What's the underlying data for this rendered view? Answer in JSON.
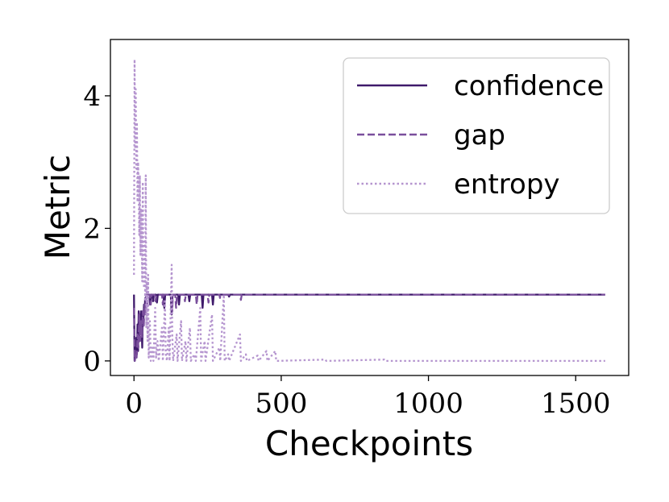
{
  "chart_data": {
    "type": "line",
    "title": "",
    "xlabel": "Checkpoints",
    "ylabel": "Metric",
    "xlim": [
      -80,
      1680
    ],
    "ylim": [
      -0.22,
      4.85
    ],
    "xticks": [
      0,
      500,
      1000,
      1500
    ],
    "yticks": [
      0,
      2,
      4
    ],
    "grid": false,
    "legend_position": "top-right",
    "series": [
      {
        "name": "confidence",
        "style": "solid",
        "color": "#3f1a6b",
        "points": [
          [
            0,
            1.0
          ],
          [
            2,
            0.0
          ],
          [
            4,
            0.2
          ],
          [
            6,
            0.05
          ],
          [
            8,
            0.35
          ],
          [
            10,
            0.1
          ],
          [
            12,
            0.55
          ],
          [
            14,
            0.15
          ],
          [
            16,
            0.75
          ],
          [
            18,
            0.3
          ],
          [
            20,
            0.7
          ],
          [
            22,
            0.4
          ],
          [
            24,
            0.75
          ],
          [
            26,
            0.5
          ],
          [
            28,
            0.2
          ],
          [
            30,
            0.75
          ],
          [
            32,
            0.6
          ],
          [
            34,
            0.85
          ],
          [
            36,
            0.7
          ],
          [
            38,
            0.95
          ],
          [
            40,
            0.9
          ],
          [
            42,
            1.0
          ],
          [
            45,
            0.95
          ],
          [
            48,
            1.0
          ],
          [
            52,
            1.0
          ],
          [
            55,
            0.85
          ],
          [
            58,
            1.0
          ],
          [
            62,
            1.0
          ],
          [
            65,
            0.9
          ],
          [
            68,
            1.0
          ],
          [
            75,
            1.0
          ],
          [
            78,
            0.88
          ],
          [
            81,
            1.0
          ],
          [
            100,
            1.0
          ],
          [
            103,
            0.8
          ],
          [
            106,
            1.0
          ],
          [
            125,
            1.0
          ],
          [
            128,
            0.7
          ],
          [
            131,
            1.0
          ],
          [
            150,
            1.0
          ],
          [
            153,
            0.85
          ],
          [
            156,
            1.0
          ],
          [
            185,
            1.0
          ],
          [
            188,
            0.9
          ],
          [
            191,
            1.0
          ],
          [
            230,
            1.0
          ],
          [
            233,
            0.8
          ],
          [
            236,
            1.0
          ],
          [
            265,
            1.0
          ],
          [
            268,
            0.85
          ],
          [
            271,
            1.0
          ],
          [
            320,
            1.0
          ],
          [
            323,
            0.97
          ],
          [
            326,
            1.0
          ],
          [
            1600,
            1.0
          ]
        ]
      },
      {
        "name": "gap",
        "style": "dashed",
        "color": "#7a4f9c",
        "points": [
          [
            0,
            0.8
          ],
          [
            3,
            0.0
          ],
          [
            6,
            0.1
          ],
          [
            9,
            0.05
          ],
          [
            12,
            0.4
          ],
          [
            15,
            0.2
          ],
          [
            18,
            0.7
          ],
          [
            21,
            0.3
          ],
          [
            24,
            0.6
          ],
          [
            27,
            0.35
          ],
          [
            30,
            0.75
          ],
          [
            33,
            0.5
          ],
          [
            36,
            0.85
          ],
          [
            39,
            0.7
          ],
          [
            42,
            0.9
          ],
          [
            45,
            0.8
          ],
          [
            48,
            1.0
          ],
          [
            54,
            1.0
          ],
          [
            57,
            0.85
          ],
          [
            60,
            1.0
          ],
          [
            70,
            1.0
          ],
          [
            73,
            0.9
          ],
          [
            76,
            1.0
          ],
          [
            95,
            1.0
          ],
          [
            98,
            0.85
          ],
          [
            101,
            1.0
          ],
          [
            128,
            1.0
          ],
          [
            130,
            0.75
          ],
          [
            132,
            1.0
          ],
          [
            140,
            1.0
          ],
          [
            143,
            0.8
          ],
          [
            146,
            1.0
          ],
          [
            170,
            1.0
          ],
          [
            173,
            0.9
          ],
          [
            176,
            1.0
          ],
          [
            210,
            1.0
          ],
          [
            213,
            0.85
          ],
          [
            216,
            1.0
          ],
          [
            250,
            1.0
          ],
          [
            253,
            0.88
          ],
          [
            256,
            1.0
          ],
          [
            290,
            1.0
          ],
          [
            292,
            0.95
          ],
          [
            294,
            1.0
          ],
          [
            360,
            1.0
          ],
          [
            363,
            0.92
          ],
          [
            366,
            1.0
          ],
          [
            1600,
            1.0
          ]
        ]
      },
      {
        "name": "entropy",
        "style": "dotted",
        "color": "#b595cf",
        "points": [
          [
            0,
            1.3
          ],
          [
            2,
            4.55
          ],
          [
            4,
            3.2
          ],
          [
            6,
            4.1
          ],
          [
            8,
            2.9
          ],
          [
            10,
            3.6
          ],
          [
            12,
            2.4
          ],
          [
            14,
            3.0
          ],
          [
            16,
            2.6
          ],
          [
            18,
            1.9
          ],
          [
            20,
            2.8
          ],
          [
            22,
            1.6
          ],
          [
            24,
            2.3
          ],
          [
            26,
            2.0
          ],
          [
            28,
            1.2
          ],
          [
            30,
            2.7
          ],
          [
            32,
            1.4
          ],
          [
            34,
            1.1
          ],
          [
            36,
            1.8
          ],
          [
            38,
            0.9
          ],
          [
            40,
            2.8
          ],
          [
            42,
            0.5
          ],
          [
            44,
            1.2
          ],
          [
            46,
            0.3
          ],
          [
            48,
            1.3
          ],
          [
            50,
            0.05
          ],
          [
            54,
            0.6
          ],
          [
            57,
            0.0
          ],
          [
            62,
            0.2
          ],
          [
            66,
            0.0
          ],
          [
            72,
            0.8
          ],
          [
            75,
            0.05
          ],
          [
            80,
            0.3
          ],
          [
            84,
            0.0
          ],
          [
            95,
            0.5
          ],
          [
            98,
            0.0
          ],
          [
            105,
            0.9
          ],
          [
            108,
            0.1
          ],
          [
            112,
            0.0
          ],
          [
            118,
            0.5
          ],
          [
            121,
            0.0
          ],
          [
            128,
            1.45
          ],
          [
            130,
            0.4
          ],
          [
            133,
            0.0
          ],
          [
            145,
            0.4
          ],
          [
            148,
            0.0
          ],
          [
            160,
            0.6
          ],
          [
            163,
            0.0
          ],
          [
            175,
            0.3
          ],
          [
            178,
            0.0
          ],
          [
            190,
            0.5
          ],
          [
            193,
            0.0
          ],
          [
            205,
            0.1
          ],
          [
            210,
            0.0
          ],
          [
            225,
            0.8
          ],
          [
            228,
            0.0
          ],
          [
            240,
            0.3
          ],
          [
            243,
            0.0
          ],
          [
            265,
            0.7
          ],
          [
            268,
            0.0
          ],
          [
            290,
            0.2
          ],
          [
            293,
            0.0
          ],
          [
            305,
            1.0
          ],
          [
            308,
            0.0
          ],
          [
            320,
            0.1
          ],
          [
            323,
            0.0
          ],
          [
            360,
            0.4
          ],
          [
            363,
            0.0
          ],
          [
            380,
            0.1
          ],
          [
            383,
            0.0
          ],
          [
            420,
            0.08
          ],
          [
            423,
            0.0
          ],
          [
            450,
            0.15
          ],
          [
            453,
            0.0
          ],
          [
            480,
            0.15
          ],
          [
            483,
            0.0
          ],
          [
            650,
            0.02
          ],
          [
            653,
            0.0
          ],
          [
            850,
            0.02
          ],
          [
            853,
            0.0
          ],
          [
            1600,
            0.0
          ]
        ]
      }
    ]
  }
}
